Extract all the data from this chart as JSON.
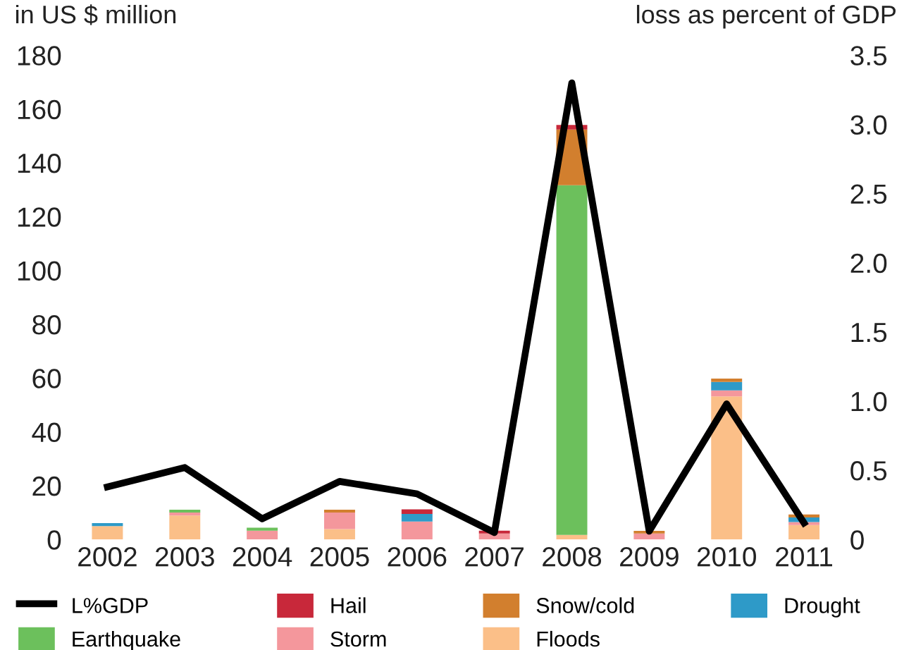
{
  "chart_data": {
    "type": "bar",
    "stacked": true,
    "ylabel": "in US $ million",
    "y2label": "loss as percent of GDP",
    "categories": [
      "2002",
      "2003",
      "2004",
      "2005",
      "2006",
      "2007",
      "2008",
      "2009",
      "2010",
      "2011"
    ],
    "series": [
      {
        "name": "Floods",
        "color": "#fbbf88",
        "values": [
          5,
          8.9,
          0,
          3.9,
          0,
          0,
          1.7,
          0,
          53.2,
          5.4
        ]
      },
      {
        "name": "Storm",
        "color": "#f4979c",
        "values": [
          0,
          1.1,
          3.3,
          6.1,
          6.7,
          2.2,
          0,
          2.2,
          2.2,
          1.1
        ]
      },
      {
        "name": "Earthquake",
        "color": "#6cc05c",
        "values": [
          0,
          1.1,
          1.1,
          0,
          0,
          0,
          130,
          0,
          0,
          0
        ]
      },
      {
        "name": "Drought",
        "color": "#2e9ac8",
        "values": [
          1.1,
          0,
          0,
          0,
          2.8,
          0,
          0,
          0,
          3.2,
          1.7
        ]
      },
      {
        "name": "Snow/cold",
        "color": "#d27f2e",
        "values": [
          0,
          0,
          0,
          1.1,
          0,
          0,
          20.7,
          1,
          1.2,
          1.1
        ]
      },
      {
        "name": "Hail",
        "color": "#c8283a",
        "values": [
          0,
          0,
          0,
          0,
          1.7,
          1.1,
          1.7,
          0,
          0,
          0
        ]
      },
      {
        "name": "L%GDP",
        "type": "line",
        "axis": "y2",
        "color": "#000000",
        "values": [
          0.38,
          0.52,
          0.15,
          0.42,
          0.33,
          0.05,
          3.3,
          0.06,
          0.98,
          0.12
        ]
      }
    ],
    "ylim": [
      0,
      180
    ],
    "yticks": [
      0,
      20,
      40,
      60,
      80,
      100,
      120,
      140,
      160,
      180
    ],
    "y2lim": [
      0,
      3.5
    ],
    "y2ticks": [
      {
        "value": 0,
        "label": "0"
      },
      0.5,
      {
        "value": 1,
        "label": "1.0"
      },
      1.5,
      {
        "value": 2,
        "label": "2.0"
      },
      2.5,
      {
        "value": 3,
        "label": "3.0"
      },
      3.5
    ],
    "grid": false,
    "legend": "bottom"
  }
}
